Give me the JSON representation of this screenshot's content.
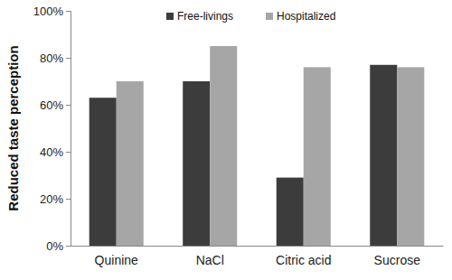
{
  "chart_data": {
    "type": "bar",
    "categories": [
      "Quinine",
      "NaCl",
      "Citric acid",
      "Sucrose"
    ],
    "series": [
      {
        "name": "Free-livings",
        "color": "#3c3c3c",
        "values": [
          63,
          70,
          29,
          77
        ]
      },
      {
        "name": "Hospitalized",
        "color": "#a6a6a6",
        "values": [
          70,
          85,
          76,
          76
        ]
      }
    ],
    "y_label": "Reduced taste perception",
    "ylim": [
      0,
      100
    ],
    "yticks": [
      {
        "value": 0,
        "label": "0%"
      },
      {
        "value": 20,
        "label": "20%"
      },
      {
        "value": 40,
        "label": "40%"
      },
      {
        "value": 60,
        "label": "60%"
      },
      {
        "value": 80,
        "label": "80%"
      },
      {
        "value": 100,
        "label": "100%"
      }
    ],
    "grid": false,
    "legend": "top"
  }
}
